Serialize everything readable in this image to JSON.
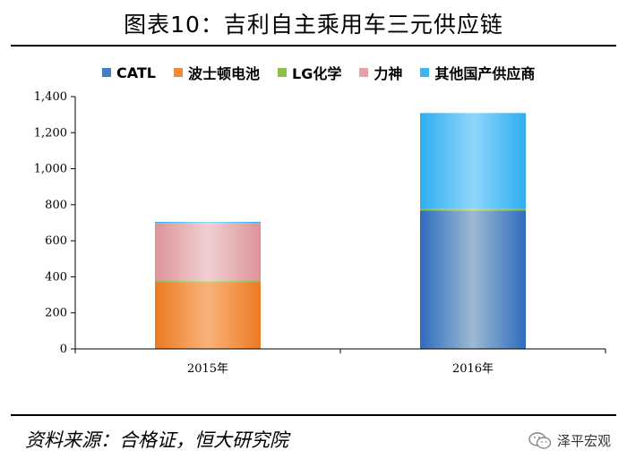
{
  "header": {
    "title": "图表10：吉利自主乘用车三元供应链"
  },
  "footer": {
    "source": "资料来源：合格证，恒大研究院",
    "brand": "泽平宏观"
  },
  "chart_data": {
    "type": "bar",
    "stacked": true,
    "categories": [
      "2015年",
      "2016年"
    ],
    "series": [
      {
        "name": "CATL",
        "values": [
          0,
          768
        ],
        "color": "#3f7fc8"
      },
      {
        "name": "波士顿电池",
        "values": [
          372,
          0
        ],
        "color": "#f08a3a"
      },
      {
        "name": "LG化学",
        "values": [
          5,
          8
        ],
        "color": "#8cc04a"
      },
      {
        "name": "力神",
        "values": [
          322,
          0
        ],
        "color": "#e4a2a6"
      },
      {
        "name": "其他国产供应商",
        "values": [
          6,
          533
        ],
        "color": "#3ab5f0"
      }
    ],
    "ylim": [
      0,
      1400
    ],
    "yticks": [
      "0",
      "200",
      "400",
      "600",
      "800",
      "1,000",
      "1,200",
      "1,400"
    ],
    "legend_position": "top",
    "grid": false
  }
}
